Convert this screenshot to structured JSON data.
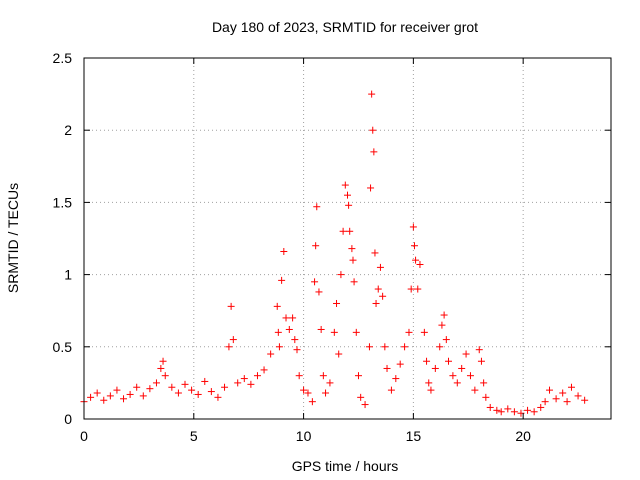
{
  "chart_data": {
    "type": "scatter",
    "title": "Day 180 of 2023, SRMTID for receiver grot",
    "xlabel": "GPS time / hours",
    "ylabel": "SRMTID / TECUs",
    "xlim": [
      0,
      24
    ],
    "ylim": [
      0,
      2.5
    ],
    "xticks": [
      0,
      5,
      10,
      15,
      20
    ],
    "xtick_labels": [
      "0",
      "5",
      "10",
      "15",
      "20"
    ],
    "yticks": [
      0,
      0.5,
      1,
      1.5,
      2,
      2.5
    ],
    "ytick_labels": [
      "0",
      "0.5",
      "1",
      "1.5",
      "2",
      "2.5"
    ],
    "grid": true,
    "marker": "+",
    "marker_color": "#ff0000",
    "series": [
      {
        "name": "SRMTID",
        "x": [
          0.0,
          0.3,
          0.6,
          0.9,
          1.2,
          1.5,
          1.8,
          2.1,
          2.4,
          2.7,
          3.0,
          3.3,
          3.5,
          3.6,
          3.7,
          4.0,
          4.3,
          4.6,
          4.9,
          5.2,
          5.5,
          5.8,
          6.1,
          6.4,
          6.6,
          6.7,
          6.8,
          7.0,
          7.3,
          7.6,
          7.9,
          8.2,
          8.5,
          8.8,
          8.85,
          8.9,
          9.0,
          9.1,
          9.2,
          9.35,
          9.5,
          9.6,
          9.7,
          9.8,
          10.0,
          10.2,
          10.4,
          10.5,
          10.55,
          10.6,
          10.7,
          10.8,
          10.9,
          11.0,
          11.2,
          11.4,
          11.5,
          11.6,
          11.7,
          11.8,
          11.9,
          12.0,
          12.05,
          12.1,
          12.2,
          12.25,
          12.3,
          12.4,
          12.5,
          12.6,
          12.8,
          13.0,
          13.05,
          13.1,
          13.15,
          13.2,
          13.25,
          13.3,
          13.4,
          13.5,
          13.6,
          13.7,
          13.8,
          14.0,
          14.2,
          14.4,
          14.6,
          14.8,
          14.9,
          15.0,
          15.05,
          15.1,
          15.2,
          15.3,
          15.5,
          15.6,
          15.7,
          15.8,
          16.0,
          16.2,
          16.3,
          16.4,
          16.5,
          16.6,
          16.8,
          17.0,
          17.2,
          17.4,
          17.6,
          17.8,
          18.0,
          18.1,
          18.2,
          18.3,
          18.5,
          18.8,
          19.0,
          19.3,
          19.6,
          19.9,
          20.2,
          20.5,
          20.8,
          21.0,
          21.2,
          21.5,
          21.8,
          22.0,
          22.2,
          22.5,
          22.8
        ],
        "y": [
          0.12,
          0.15,
          0.18,
          0.13,
          0.16,
          0.2,
          0.14,
          0.17,
          0.22,
          0.16,
          0.21,
          0.25,
          0.35,
          0.4,
          0.3,
          0.22,
          0.18,
          0.24,
          0.2,
          0.17,
          0.26,
          0.19,
          0.15,
          0.22,
          0.5,
          0.78,
          0.55,
          0.25,
          0.28,
          0.24,
          0.3,
          0.34,
          0.45,
          0.78,
          0.6,
          0.5,
          0.96,
          1.16,
          0.7,
          0.62,
          0.7,
          0.55,
          0.48,
          0.3,
          0.2,
          0.18,
          0.12,
          0.95,
          1.2,
          1.47,
          0.88,
          0.62,
          0.3,
          0.18,
          0.25,
          0.6,
          0.8,
          0.45,
          1.0,
          1.3,
          1.62,
          1.55,
          1.48,
          1.3,
          1.18,
          1.1,
          0.95,
          0.6,
          0.3,
          0.15,
          0.1,
          0.5,
          1.6,
          2.25,
          2.0,
          1.85,
          1.15,
          0.8,
          0.9,
          1.05,
          0.85,
          0.5,
          0.35,
          0.2,
          0.28,
          0.38,
          0.5,
          0.6,
          0.9,
          1.33,
          1.2,
          1.1,
          0.9,
          1.07,
          0.6,
          0.4,
          0.25,
          0.2,
          0.35,
          0.5,
          0.65,
          0.72,
          0.55,
          0.4,
          0.3,
          0.25,
          0.35,
          0.45,
          0.3,
          0.2,
          0.48,
          0.4,
          0.25,
          0.15,
          0.08,
          0.06,
          0.05,
          0.07,
          0.05,
          0.04,
          0.06,
          0.05,
          0.08,
          0.12,
          0.2,
          0.14,
          0.18,
          0.12,
          0.22,
          0.16,
          0.13
        ]
      }
    ]
  }
}
